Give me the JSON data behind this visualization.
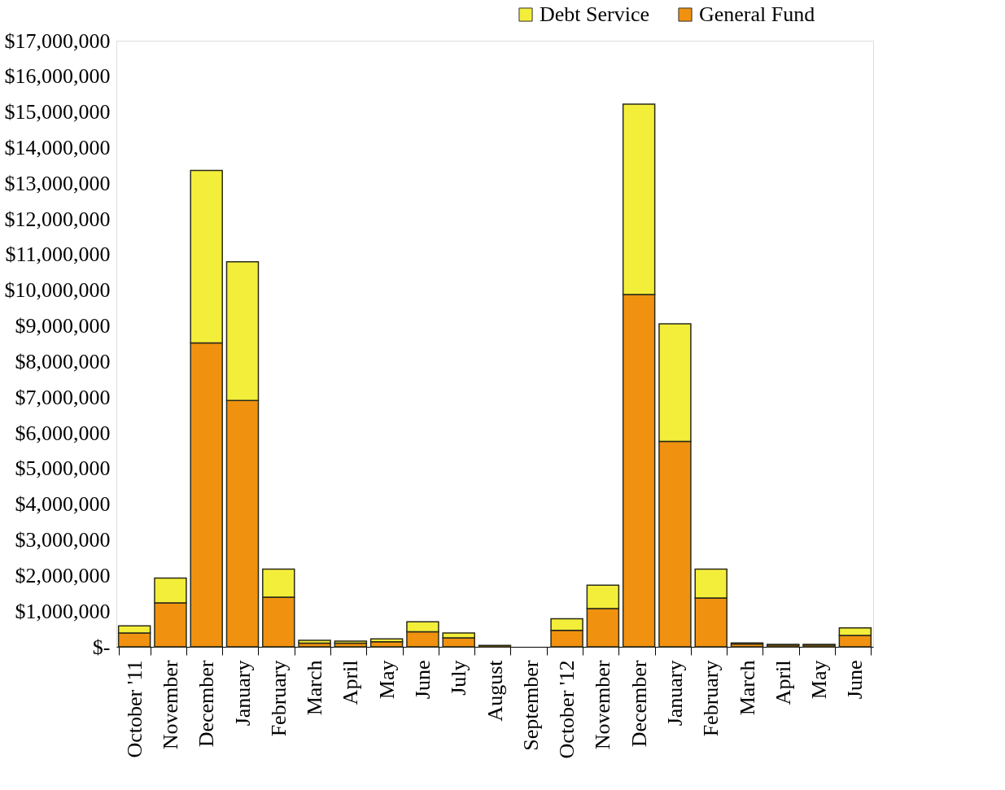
{
  "chart_data": {
    "type": "bar",
    "stacked": true,
    "legend": "top right",
    "grid": false,
    "categories": [
      "October '11",
      "November",
      "December",
      "January",
      "February",
      "March",
      "April",
      "May",
      "June",
      "July",
      "August",
      "September",
      "October '12",
      "November",
      "December",
      "January",
      "February",
      "March",
      "April",
      "May",
      "June"
    ],
    "series": [
      {
        "name": "General Fund",
        "color": "#f0920f",
        "values": [
          390000,
          1230000,
          8520000,
          6910000,
          1390000,
          100000,
          100000,
          140000,
          420000,
          250000,
          40000,
          0,
          460000,
          1070000,
          9880000,
          5760000,
          1370000,
          80000,
          50000,
          50000,
          320000
        ]
      },
      {
        "name": "Debt Service",
        "color": "#f3ee3a",
        "values": [
          200000,
          700000,
          4840000,
          3890000,
          790000,
          80000,
          60000,
          80000,
          280000,
          140000,
          null,
          0,
          330000,
          660000,
          5340000,
          3300000,
          810000,
          30000,
          20000,
          20000,
          210000
        ]
      }
    ],
    "ylim": [
      0,
      17000000
    ],
    "yticks": [
      {
        "value": 0,
        "label": "$-"
      },
      {
        "value": 1000000,
        "label": "$1,000,000"
      },
      {
        "value": 2000000,
        "label": "$2,000,000"
      },
      {
        "value": 3000000,
        "label": "$3,000,000"
      },
      {
        "value": 4000000,
        "label": "$4,000,000"
      },
      {
        "value": 5000000,
        "label": "$5,000,000"
      },
      {
        "value": 6000000,
        "label": "$6,000,000"
      },
      {
        "value": 7000000,
        "label": "$7,000,000"
      },
      {
        "value": 8000000,
        "label": "$8,000,000"
      },
      {
        "value": 9000000,
        "label": "$9,000,000"
      },
      {
        "value": 10000000,
        "label": "$10,000,000"
      },
      {
        "value": 11000000,
        "label": "$11,000,000"
      },
      {
        "value": 12000000,
        "label": "$12,000,000"
      },
      {
        "value": 13000000,
        "label": "$13,000,000"
      },
      {
        "value": 14000000,
        "label": "$14,000,000"
      },
      {
        "value": 15000000,
        "label": "$15,000,000"
      },
      {
        "value": 16000000,
        "label": "$16,000,000"
      },
      {
        "value": 17000000,
        "label": "$17,000,000"
      }
    ]
  }
}
